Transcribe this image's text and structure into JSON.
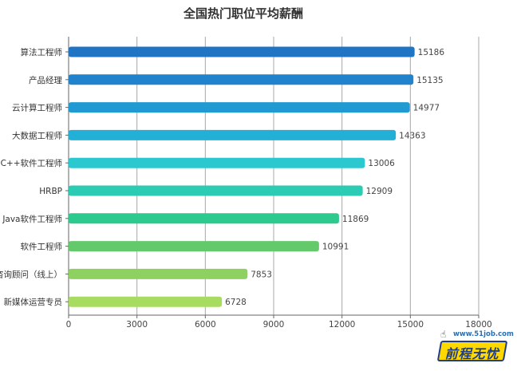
{
  "chart_data": {
    "type": "bar",
    "orientation": "horizontal",
    "title": "全国热门职位平均薪酬",
    "categories": [
      "算法工程师",
      "产品经理",
      "云计算工程师",
      "大数据工程师",
      "C++软件工程师",
      "HRBP",
      "Java软件工程师",
      "软件工程师",
      "咨询顾问（线上）",
      "新媒体运营专员"
    ],
    "values": [
      15186,
      15135,
      14977,
      14363,
      13006,
      12909,
      11869,
      10991,
      7853,
      6728
    ],
    "value_labels": [
      "15186",
      "15135",
      "14977",
      "14363",
      "13006",
      "12909",
      "11869",
      "10991",
      "7853",
      "6728"
    ],
    "xlim": [
      0,
      18000
    ],
    "x_ticks": [
      0,
      3000,
      6000,
      9000,
      12000,
      15000,
      18000
    ],
    "x_tick_labels": [
      "0",
      "3000",
      "6000",
      "9000",
      "12000",
      "15000",
      "18000"
    ],
    "grid": true,
    "bar_colors": [
      "#1f74c4",
      "#2083cc",
      "#219ad4",
      "#23b0d6",
      "#2bc8d0",
      "#2ccbb4",
      "#2dc98f",
      "#63c96a",
      "#8ed160",
      "#a8dc60"
    ]
  },
  "watermark": {
    "url": "www.51job.com",
    "brand": "前程无忧",
    "cursor_icon": "hand-pointer-icon",
    "badge_color": "#ffd800",
    "text_color": "#1d3d8c"
  }
}
